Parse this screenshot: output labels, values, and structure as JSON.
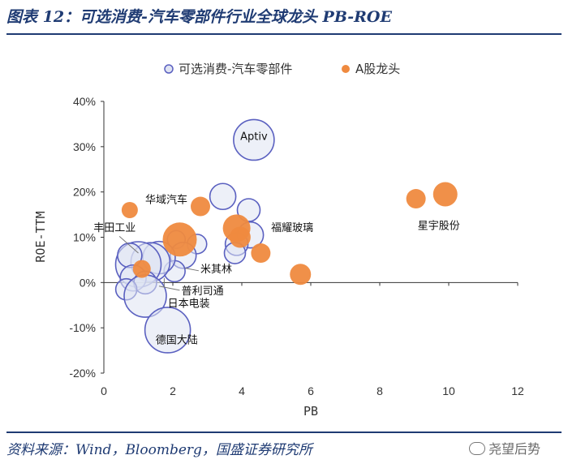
{
  "header": {
    "title": "图表 12：可选消费-汽车零部件行业全球龙头 PB-ROE"
  },
  "footer": {
    "source": "资料来源：Wind，Bloomberg，国盛证券研究所",
    "watermark": "尧望后势"
  },
  "colors": {
    "title": "#1f3b73",
    "global_fill": "#dfe3f2",
    "global_edge": "#5a60c0",
    "a_share": "#ef8a3f"
  },
  "chart_data": {
    "type": "scatter",
    "xlabel": "PB",
    "ylabel": "ROE-TTM",
    "xlim": [
      0,
      12
    ],
    "ylim": [
      -20,
      40
    ],
    "xticks": [
      0,
      2,
      4,
      6,
      8,
      10,
      12
    ],
    "yticks": [
      -20,
      -10,
      0,
      10,
      20,
      30,
      40
    ],
    "ytick_labels": [
      "-20%",
      "-10%",
      "0%",
      "10%",
      "20%",
      "30%",
      "40%"
    ],
    "series": [
      {
        "name": "可选消费-汽车零部件",
        "style": "hollow",
        "points": [
          {
            "x": 4.35,
            "y": 31.5,
            "size": 25
          },
          {
            "x": 3.45,
            "y": 19.0,
            "size": 16
          },
          {
            "x": 4.2,
            "y": 16.0,
            "size": 14
          },
          {
            "x": 4.25,
            "y": 10.5,
            "size": 16
          },
          {
            "x": 3.85,
            "y": 8.5,
            "size": 14
          },
          {
            "x": 3.8,
            "y": 6.5,
            "size": 13
          },
          {
            "x": 2.7,
            "y": 8.5,
            "size": 12
          },
          {
            "x": 2.1,
            "y": 9.5,
            "size": 11
          },
          {
            "x": 2.3,
            "y": 6.0,
            "size": 16
          },
          {
            "x": 2.05,
            "y": 2.5,
            "size": 13
          },
          {
            "x": 1.6,
            "y": 5.5,
            "size": 20
          },
          {
            "x": 1.35,
            "y": 4.5,
            "size": 24
          },
          {
            "x": 1.0,
            "y": 4.0,
            "size": 28
          },
          {
            "x": 0.75,
            "y": 6.0,
            "size": 15
          },
          {
            "x": 0.85,
            "y": 1.0,
            "size": 16
          },
          {
            "x": 1.2,
            "y": 0.0,
            "size": 14
          },
          {
            "x": 0.65,
            "y": -1.5,
            "size": 13
          },
          {
            "x": 1.2,
            "y": -3.0,
            "size": 26
          },
          {
            "x": 1.85,
            "y": -10.5,
            "size": 28
          }
        ]
      },
      {
        "name": "A股龙头",
        "style": "filled",
        "points": [
          {
            "x": 0.75,
            "y": 16.0,
            "size": 10
          },
          {
            "x": 2.8,
            "y": 16.8,
            "size": 12
          },
          {
            "x": 2.2,
            "y": 9.5,
            "size": 21
          },
          {
            "x": 1.1,
            "y": 3.0,
            "size": 11
          },
          {
            "x": 3.85,
            "y": 12.0,
            "size": 17
          },
          {
            "x": 3.95,
            "y": 10.0,
            "size": 13
          },
          {
            "x": 4.55,
            "y": 6.5,
            "size": 12
          },
          {
            "x": 5.7,
            "y": 1.8,
            "size": 13
          },
          {
            "x": 9.05,
            "y": 18.5,
            "size": 12
          },
          {
            "x": 9.9,
            "y": 19.5,
            "size": 15
          }
        ]
      }
    ],
    "annotations": [
      {
        "text": "Aptiv",
        "x": 4.35,
        "y": 31.5,
        "align": "middle"
      },
      {
        "text": "华域汽车",
        "x": 1.2,
        "y": 17.5,
        "align": "start"
      },
      {
        "text": "丰田工业",
        "x": -0.3,
        "y": 11.3,
        "align": "start"
      },
      {
        "text": "福耀玻璃",
        "x": 4.85,
        "y": 11.3,
        "align": "start"
      },
      {
        "text": "星宇股份",
        "x": 9.1,
        "y": 11.8,
        "align": "start"
      },
      {
        "text": "米其林",
        "x": 2.8,
        "y": 2.2,
        "align": "start"
      },
      {
        "text": "普利司通",
        "x": 2.25,
        "y": -2.6,
        "align": "start"
      },
      {
        "text": "日本电装",
        "x": 1.85,
        "y": -5.4,
        "align": "start"
      },
      {
        "text": "德国大陆",
        "x": 1.5,
        "y": -13.5,
        "align": "start"
      }
    ],
    "leaders": [
      {
        "x1": 0.45,
        "y1": 10.2,
        "x2": 1.0,
        "y2": 6.5
      },
      {
        "x1": 2.75,
        "y1": 2.6,
        "x2": 2.35,
        "y2": 3.2
      },
      {
        "x1": 2.2,
        "y1": -1.7,
        "x2": 1.6,
        "y2": -0.8
      },
      {
        "x1": 1.75,
        "y1": 1.0,
        "x2": 1.75,
        "y2": -1.0
      }
    ],
    "legend": {
      "position": "top"
    }
  }
}
